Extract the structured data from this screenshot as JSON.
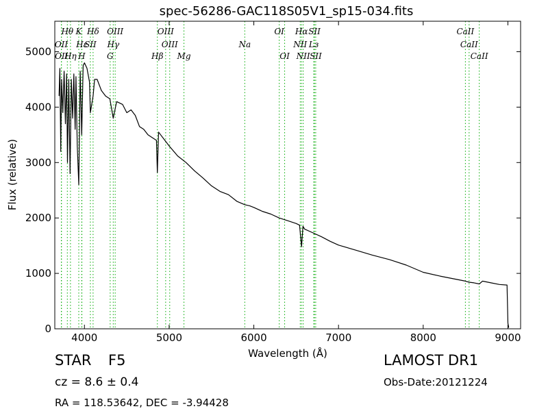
{
  "chart_data": {
    "type": "line",
    "title": "spec-56286-GAC118S05V1_sp15-034.fits",
    "xlabel": "Wavelength (Å)",
    "ylabel": "Flux (relative)",
    "xlim": [
      3650,
      9150
    ],
    "ylim": [
      0,
      5550
    ],
    "xticks": [
      4000,
      5000,
      6000,
      7000,
      8000,
      9000
    ],
    "yticks": [
      0,
      1000,
      2000,
      3000,
      4000,
      5000
    ],
    "line_color": "#000000",
    "marker_color": "#00aa00",
    "series": [
      {
        "x": [
          3700,
          3710,
          3720,
          3730,
          3745,
          3760,
          3775,
          3790,
          3800,
          3815,
          3830,
          3845,
          3860,
          3875,
          3890,
          3900,
          3915,
          3933,
          3950,
          3968,
          3985,
          4000,
          4030,
          4060,
          4070,
          4102,
          4120,
          4150,
          4200,
          4250,
          4300,
          4340,
          4380,
          4450,
          4500,
          4550,
          4600,
          4650,
          4700,
          4750,
          4800,
          4850,
          4861,
          4875,
          4900,
          4950,
          5000,
          5100,
          5200,
          5300,
          5400,
          5500,
          5600,
          5700,
          5800,
          5893,
          5950,
          6000,
          6100,
          6200,
          6300,
          6400,
          6500,
          6540,
          6563,
          6580,
          6600,
          6700,
          6800,
          6900,
          7000,
          7200,
          7400,
          7600,
          7800,
          8000,
          8200,
          8400,
          8498,
          8542,
          8600,
          8662,
          8700,
          8800,
          8900,
          8990,
          9000,
          9010
        ],
        "y": [
          4200,
          4700,
          3200,
          4500,
          3900,
          4650,
          3700,
          4600,
          3000,
          4500,
          2800,
          4500,
          3800,
          4600,
          3600,
          4550,
          3300,
          2600,
          4650,
          3500,
          4750,
          4800,
          4700,
          4450,
          3900,
          4200,
          4500,
          4500,
          4300,
          4200,
          4150,
          3800,
          4100,
          4050,
          3900,
          3950,
          3850,
          3650,
          3600,
          3500,
          3450,
          3400,
          2820,
          3550,
          3500,
          3400,
          3300,
          3120,
          3000,
          2850,
          2720,
          2580,
          2480,
          2420,
          2300,
          2240,
          2220,
          2190,
          2120,
          2070,
          2000,
          1950,
          1900,
          1870,
          1480,
          1850,
          1800,
          1730,
          1660,
          1580,
          1510,
          1420,
          1330,
          1250,
          1150,
          1020,
          950,
          890,
          860,
          840,
          830,
          810,
          860,
          830,
          800,
          790,
          100,
          20
        ]
      }
    ],
    "lines": [
      {
        "name": "Hθ",
        "x": 3798,
        "row": 0
      },
      {
        "name": "K",
        "x": 3933,
        "row": 0
      },
      {
        "name": "Hδ",
        "x": 4102,
        "row": 0
      },
      {
        "name": "OIII",
        "x": 4363,
        "row": 0
      },
      {
        "name": "OIII",
        "x": 4959,
        "row": 0
      },
      {
        "name": "OI",
        "x": 6300,
        "row": 0
      },
      {
        "name": "Hα",
        "x": 6563,
        "row": 0
      },
      {
        "name": "SII",
        "x": 6716,
        "row": 0
      },
      {
        "name": "CaII",
        "x": 8498,
        "row": 0
      },
      {
        "name": "OII",
        "x": 3727,
        "row": 1
      },
      {
        "name": "Hε",
        "x": 3970,
        "row": 1
      },
      {
        "name": "SII",
        "x": 4070,
        "row": 1
      },
      {
        "name": "Hγ",
        "x": 4340,
        "row": 1
      },
      {
        "name": "OIII",
        "x": 5007,
        "row": 1
      },
      {
        "name": "Na",
        "x": 5893,
        "row": 1
      },
      {
        "name": "NII",
        "x": 6548,
        "row": 1
      },
      {
        "name": "Lз",
        "x": 6708,
        "row": 1
      },
      {
        "name": "CaII",
        "x": 8542,
        "row": 1
      },
      {
        "name": "OII",
        "x": 3729,
        "row": 2
      },
      {
        "name": "Hη",
        "x": 3835,
        "row": 2
      },
      {
        "name": "H",
        "x": 3968,
        "row": 2
      },
      {
        "name": "G",
        "x": 4304,
        "row": 2
      },
      {
        "name": "Hβ",
        "x": 4861,
        "row": 2
      },
      {
        "name": "Mg",
        "x": 5175,
        "row": 2
      },
      {
        "name": "OI",
        "x": 6364,
        "row": 2
      },
      {
        "name": "NII",
        "x": 6583,
        "row": 2
      },
      {
        "name": "SII",
        "x": 6731,
        "row": 2
      },
      {
        "name": "CaII",
        "x": 8662,
        "row": 2
      }
    ]
  },
  "info": {
    "class_label": "STAR",
    "subclass": "F5",
    "redshift": "cz = 8.6 ± 0.4",
    "coords": "RA = 118.53642, DEC = -3.94428",
    "survey": "LAMOST DR1",
    "obs_date": "Obs-Date:20121224"
  }
}
